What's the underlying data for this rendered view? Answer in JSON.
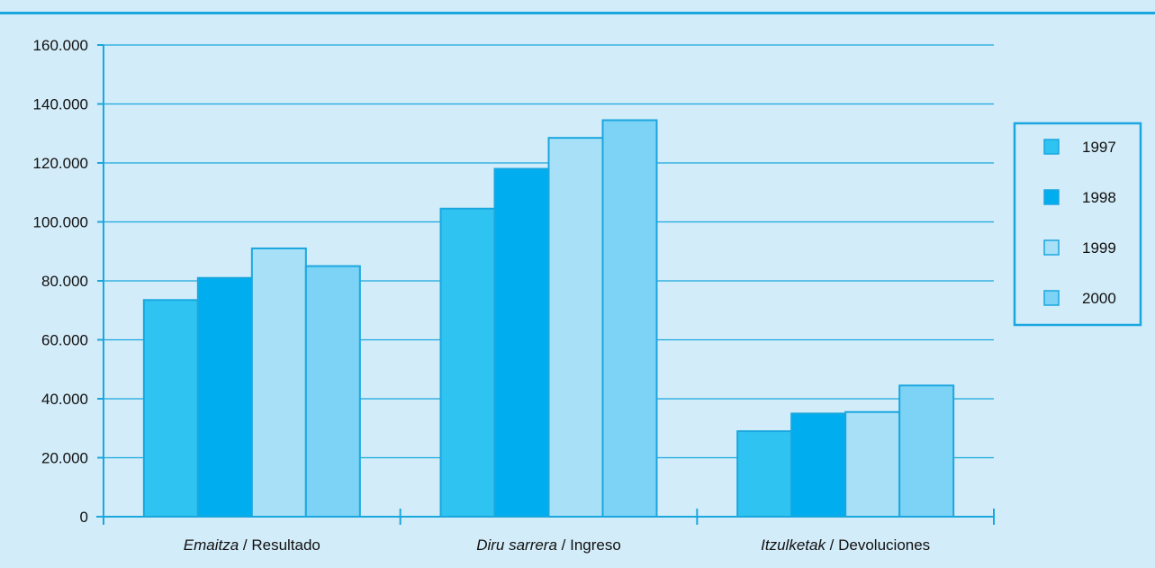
{
  "chart_data": {
    "type": "bar",
    "categories": [
      {
        "term": "Emaitza",
        "translation": "Resultado"
      },
      {
        "term": "Diru sarrera",
        "translation": "Ingreso"
      },
      {
        "term": "Itzulketak",
        "translation": "Devoluciones"
      }
    ],
    "separator": " / ",
    "series": [
      {
        "name": "1997",
        "color": "#2ec3f0",
        "values": [
          73500,
          104500,
          29000
        ]
      },
      {
        "name": "1998",
        "color": "#00aeef",
        "values": [
          81000,
          118000,
          35000
        ]
      },
      {
        "name": "1999",
        "color": "#a8e0f7",
        "values": [
          91000,
          128500,
          35500
        ]
      },
      {
        "name": "2000",
        "color": "#7dd3f5",
        "values": [
          85000,
          134500,
          44500
        ]
      }
    ],
    "ylim": [
      0,
      160000
    ],
    "yticks": [
      "0",
      "20.000",
      "40.000",
      "60.000",
      "80.000",
      "100.000",
      "120.000",
      "140.000",
      "160.000"
    ],
    "grid": true,
    "legend_position": "right",
    "title": "",
    "xlabel": "",
    "ylabel": ""
  },
  "colors": {
    "background": "#d3ecf9",
    "axis": "#1aa7df",
    "bar_outline": "#1aa7df"
  }
}
